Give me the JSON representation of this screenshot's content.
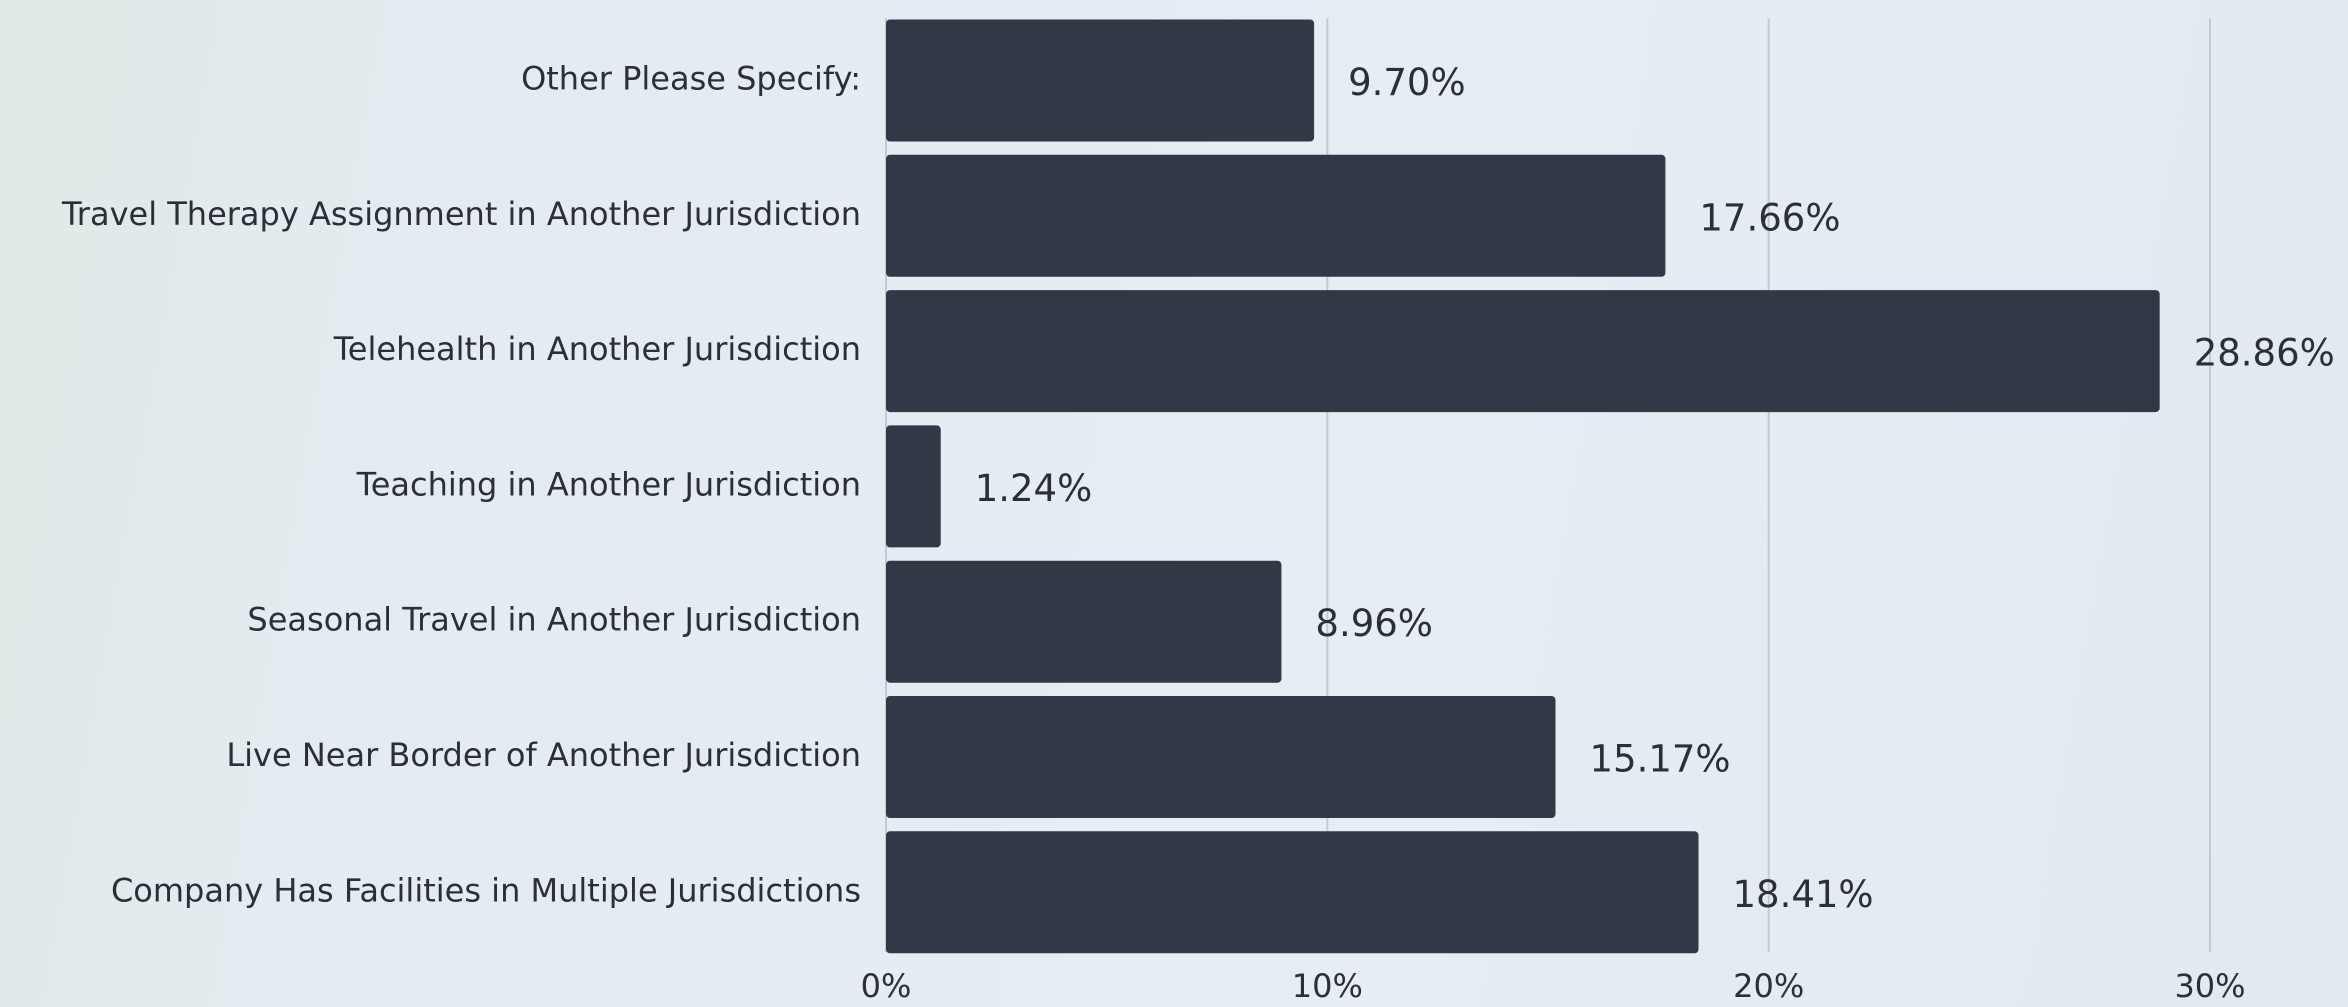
{
  "chart_data": {
    "type": "bar",
    "orientation": "horizontal",
    "categories": [
      "Other Please Specify:",
      "Travel Therapy Assignment in Another Jurisdiction",
      "Telehealth in Another Jurisdiction",
      "Teaching in Another Jurisdiction",
      "Seasonal Travel in Another Jurisdiction",
      "Live Near Border of Another Jurisdiction",
      "Company Has Facilities in Multiple Jurisdictions"
    ],
    "values": [
      9.7,
      17.66,
      28.86,
      1.24,
      8.96,
      15.17,
      18.41
    ],
    "value_labels": [
      "9.70%",
      "17.66%",
      "28.86%",
      "1.24%",
      "8.96%",
      "15.17%",
      "18.41%"
    ],
    "color": "#323846",
    "xlim": [
      0,
      30
    ],
    "xticks": [
      {
        "value": 0,
        "label": "0%"
      },
      {
        "value": 10,
        "label": "10%"
      },
      {
        "value": 20,
        "label": "20%"
      },
      {
        "value": 30,
        "label": "30%"
      }
    ],
    "grid": true
  }
}
